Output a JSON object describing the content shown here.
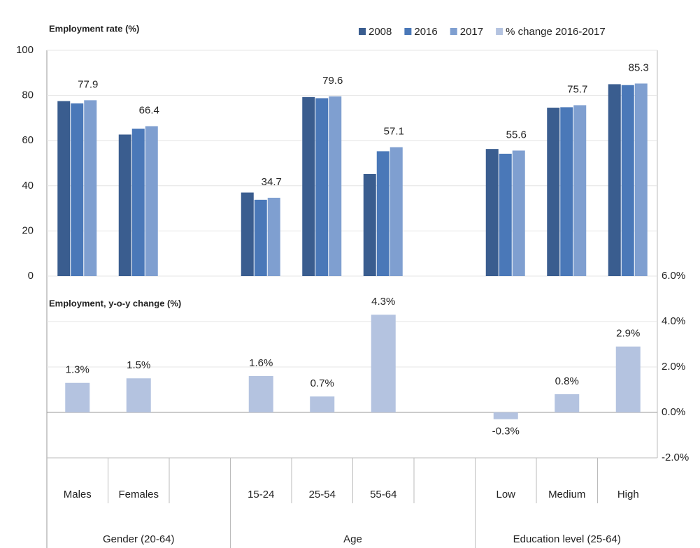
{
  "chart_data": {
    "type": "bar",
    "title": "Employment rate (%)",
    "subtitle": "Employment, y-o-y change (%)",
    "categories": [
      "Males",
      "Females",
      null,
      "15-24",
      "25-54",
      "55-64",
      null,
      "Low",
      "Medium",
      "High"
    ],
    "groups": [
      "Gender (20-64)",
      "Age",
      "Education level (25-64)"
    ],
    "series": [
      {
        "name": "2008",
        "color": "#3a5d8f",
        "values": [
          77.5,
          62.7,
          null,
          37.0,
          79.3,
          45.2,
          null,
          56.3,
          74.6,
          85.0
        ]
      },
      {
        "name": "2016",
        "color": "#4a78b8",
        "values": [
          76.5,
          65.3,
          null,
          33.8,
          78.8,
          55.3,
          null,
          54.2,
          74.8,
          84.6
        ]
      },
      {
        "name": "2017",
        "color": "#7f9fd0",
        "values": [
          77.9,
          66.4,
          null,
          34.7,
          79.6,
          57.1,
          null,
          55.6,
          75.7,
          85.3
        ]
      },
      {
        "name": "% change 2016-2017",
        "color": "#b4c3e0",
        "axis": "y2",
        "values": [
          1.3,
          1.5,
          null,
          1.6,
          0.7,
          4.3,
          null,
          -0.3,
          0.8,
          2.9
        ],
        "value_labels": [
          "1.3%",
          "1.5%",
          null,
          "1.6%",
          "0.7%",
          "4.3%",
          null,
          "-0.3%",
          "0.8%",
          "2.9%"
        ]
      }
    ],
    "ylim": [
      0,
      100
    ],
    "yticks": [
      0,
      20,
      40,
      60,
      80,
      100
    ],
    "y2lim": [
      -2,
      6
    ],
    "y2ticks": [
      {
        "value": -2,
        "label": "-2.0%"
      },
      {
        "value": 0,
        "label": "0.0%"
      },
      {
        "value": 2,
        "label": "2.0%"
      },
      {
        "value": 4,
        "label": "4.0%"
      },
      {
        "value": 6,
        "label": "6.0%"
      }
    ],
    "grid": true,
    "legend": "top"
  }
}
